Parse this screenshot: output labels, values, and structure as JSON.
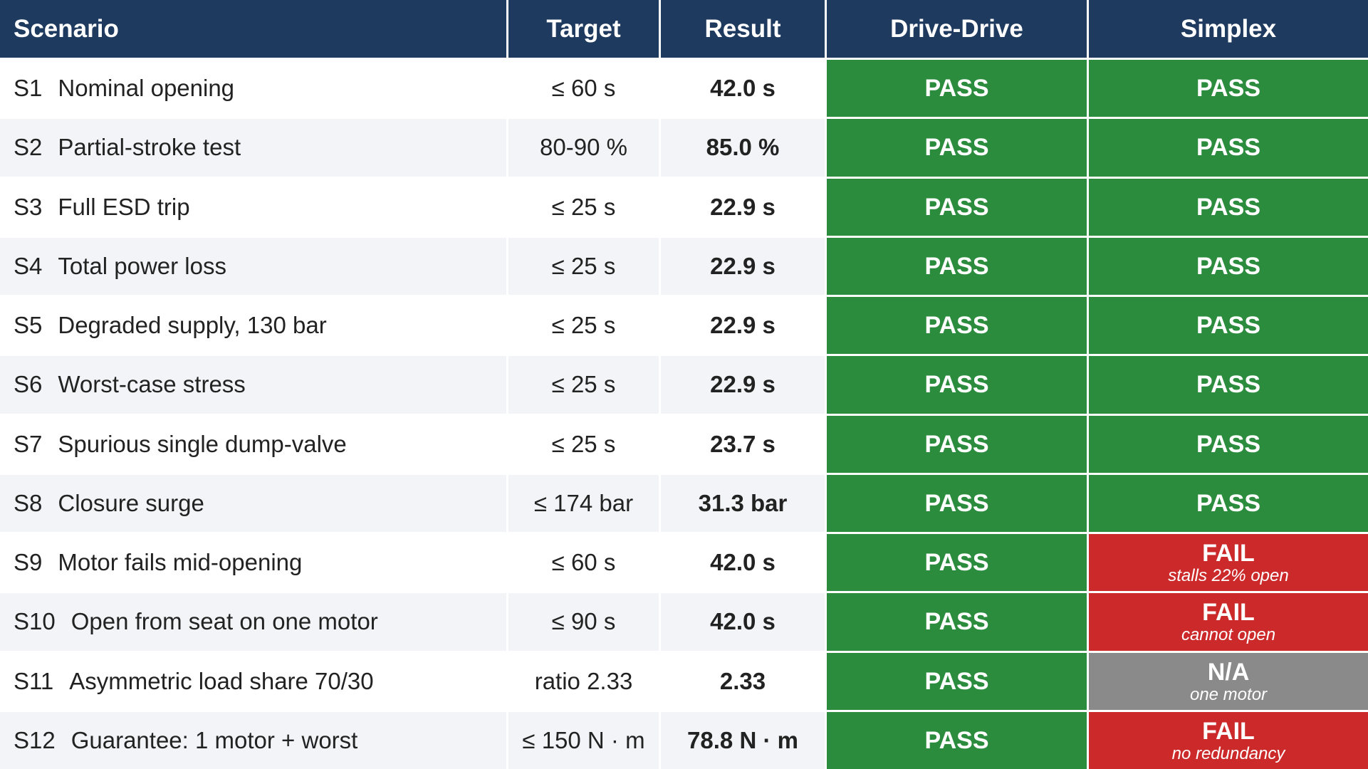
{
  "headers": {
    "scenario": "Scenario",
    "target": "Target",
    "result": "Result",
    "drive_drive": "Drive-Drive",
    "simplex": "Simplex"
  },
  "colors": {
    "header_bg": "#1f3a5f",
    "pass": "#2b8c3e",
    "fail": "#cc2a2a",
    "na": "#8a8a8a",
    "row_alt": "#f2f4f7"
  },
  "rows": [
    {
      "id": "S1",
      "name": "Nominal opening",
      "target": "≤  60 s",
      "result": "42.0 s",
      "drive_drive": "PASS",
      "simplex": "PASS",
      "simplex_note": "",
      "simplex_status": "pass"
    },
    {
      "id": "S2",
      "name": "Partial-stroke test",
      "target": "80-90 %",
      "result": "85.0 %",
      "drive_drive": "PASS",
      "simplex": "PASS",
      "simplex_note": "",
      "simplex_status": "pass"
    },
    {
      "id": "S3",
      "name": "Full ESD trip",
      "target": "≤  25 s",
      "result": "22.9 s",
      "drive_drive": "PASS",
      "simplex": "PASS",
      "simplex_note": "",
      "simplex_status": "pass"
    },
    {
      "id": "S4",
      "name": "Total power loss",
      "target": "≤  25 s",
      "result": "22.9 s",
      "drive_drive": "PASS",
      "simplex": "PASS",
      "simplex_note": "",
      "simplex_status": "pass"
    },
    {
      "id": "S5",
      "name": "Degraded supply, 130 bar",
      "target": "≤  25 s",
      "result": "22.9 s",
      "drive_drive": "PASS",
      "simplex": "PASS",
      "simplex_note": "",
      "simplex_status": "pass"
    },
    {
      "id": "S6",
      "name": "Worst-case stress",
      "target": "≤  25 s",
      "result": "22.9 s",
      "drive_drive": "PASS",
      "simplex": "PASS",
      "simplex_note": "",
      "simplex_status": "pass"
    },
    {
      "id": "S7",
      "name": "Spurious single dump-valve",
      "target": "≤  25 s",
      "result": "23.7 s",
      "drive_drive": "PASS",
      "simplex": "PASS",
      "simplex_note": "",
      "simplex_status": "pass"
    },
    {
      "id": "S8",
      "name": "Closure surge",
      "target": "≤  174 bar",
      "result": "31.3 bar",
      "drive_drive": "PASS",
      "simplex": "PASS",
      "simplex_note": "",
      "simplex_status": "pass"
    },
    {
      "id": "S9",
      "name": "Motor fails mid-opening",
      "target": "≤  60 s",
      "result": "42.0 s",
      "drive_drive": "PASS",
      "simplex": "FAIL",
      "simplex_note": "stalls 22% open",
      "simplex_status": "fail"
    },
    {
      "id": "S10",
      "name": "Open from seat on one motor",
      "target": "≤  90 s",
      "result": "42.0 s",
      "drive_drive": "PASS",
      "simplex": "FAIL",
      "simplex_note": "cannot open",
      "simplex_status": "fail"
    },
    {
      "id": "S11",
      "name": "Asymmetric load share 70/30",
      "target": "ratio 2.33",
      "result": "2.33",
      "drive_drive": "PASS",
      "simplex": "N/A",
      "simplex_note": "one motor",
      "simplex_status": "na"
    },
    {
      "id": "S12",
      "name": "Guarantee: 1 motor + worst",
      "target": "≤  150 N · m",
      "result": "78.8 N · m",
      "drive_drive": "PASS",
      "simplex": "FAIL",
      "simplex_note": "no redundancy",
      "simplex_status": "fail"
    }
  ]
}
